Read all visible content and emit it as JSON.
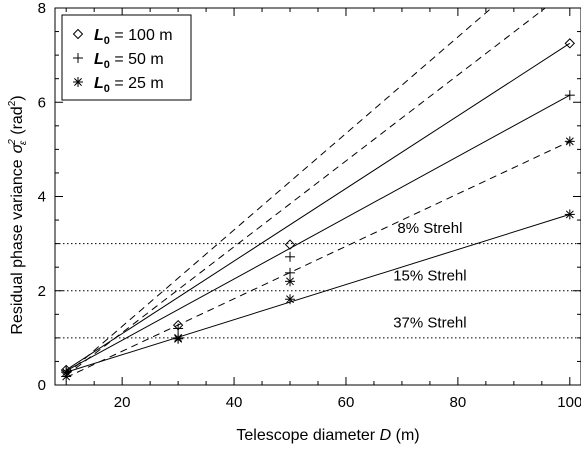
{
  "chart_data": {
    "type": "line",
    "xlabel_text": "Telescope diameter",
    "xlabel_var": "D",
    "xlabel_unit": "(m)",
    "ylabel_text": "Residual phase variance",
    "ylabel_unit": "(rad",
    "ylabel_unit_exp": "2",
    "ylabel_unit_close": ")",
    "xlim": [
      8,
      102
    ],
    "ylim": [
      0,
      8
    ],
    "xticks": [
      20,
      40,
      60,
      80,
      100
    ],
    "yticks": [
      0,
      2,
      4,
      6,
      8
    ],
    "legend_position": "top-left",
    "series": [
      {
        "name": "L0 = 100 m",
        "legend_var": "L",
        "legend_sub": "0",
        "legend_rest": " = 100 m",
        "marker": "diamond",
        "x": [
          10,
          30,
          50,
          100
        ],
        "y": [
          0.32,
          1.27,
          2.98,
          7.25
        ],
        "solid_fit": [
          [
            10,
            0.32
          ],
          [
            100,
            7.25
          ]
        ],
        "dashed_fit": [
          [
            10,
            0.22
          ],
          [
            86,
            8.0
          ]
        ]
      },
      {
        "name": "L0 = 50 m",
        "legend_var": "L",
        "legend_sub": "0",
        "legend_rest": " = 50 m",
        "marker": "plus",
        "x": [
          10,
          30,
          50,
          100
        ],
        "y": [
          0.3,
          1.2,
          2.72,
          6.15
        ],
        "solid_fit": [
          [
            10,
            0.3
          ],
          [
            100,
            6.15
          ]
        ],
        "dashed_fit": [
          [
            10,
            0.2
          ],
          [
            100,
            8.4
          ]
        ]
      },
      {
        "name": "L0 = 25 m",
        "legend_var": "L",
        "legend_sub": "0",
        "legend_rest": " = 25 m",
        "marker": "asterisk",
        "x": [
          10,
          30,
          50,
          100
        ],
        "y": [
          0.27,
          0.98,
          1.82,
          3.62
        ],
        "solid_fit": [
          [
            10,
            0.27
          ],
          [
            100,
            3.62
          ]
        ],
        "dashed_fit": [
          [
            10,
            0.16
          ],
          [
            100,
            5.17
          ]
        ]
      },
      {
        "name": "L0 = 25 m (upper)",
        "marker": "asterisk",
        "x": [
          10,
          30,
          50,
          100
        ],
        "y": [
          0.18,
          1.0,
          2.2,
          5.17
        ]
      },
      {
        "name": "L0 = 50 m (upper)",
        "marker": "plus",
        "x": [
          50
        ],
        "y": [
          2.38
        ]
      }
    ],
    "hlines": [
      {
        "y": 3.0,
        "label": "8% Strehl",
        "label_x": 75,
        "label_y": 3.2
      },
      {
        "y": 2.0,
        "label": "15% Strehl",
        "label_x": 75,
        "label_y": 2.2
      },
      {
        "y": 1.0,
        "label": "37% Strehl",
        "label_x": 75,
        "label_y": 1.2
      }
    ]
  }
}
